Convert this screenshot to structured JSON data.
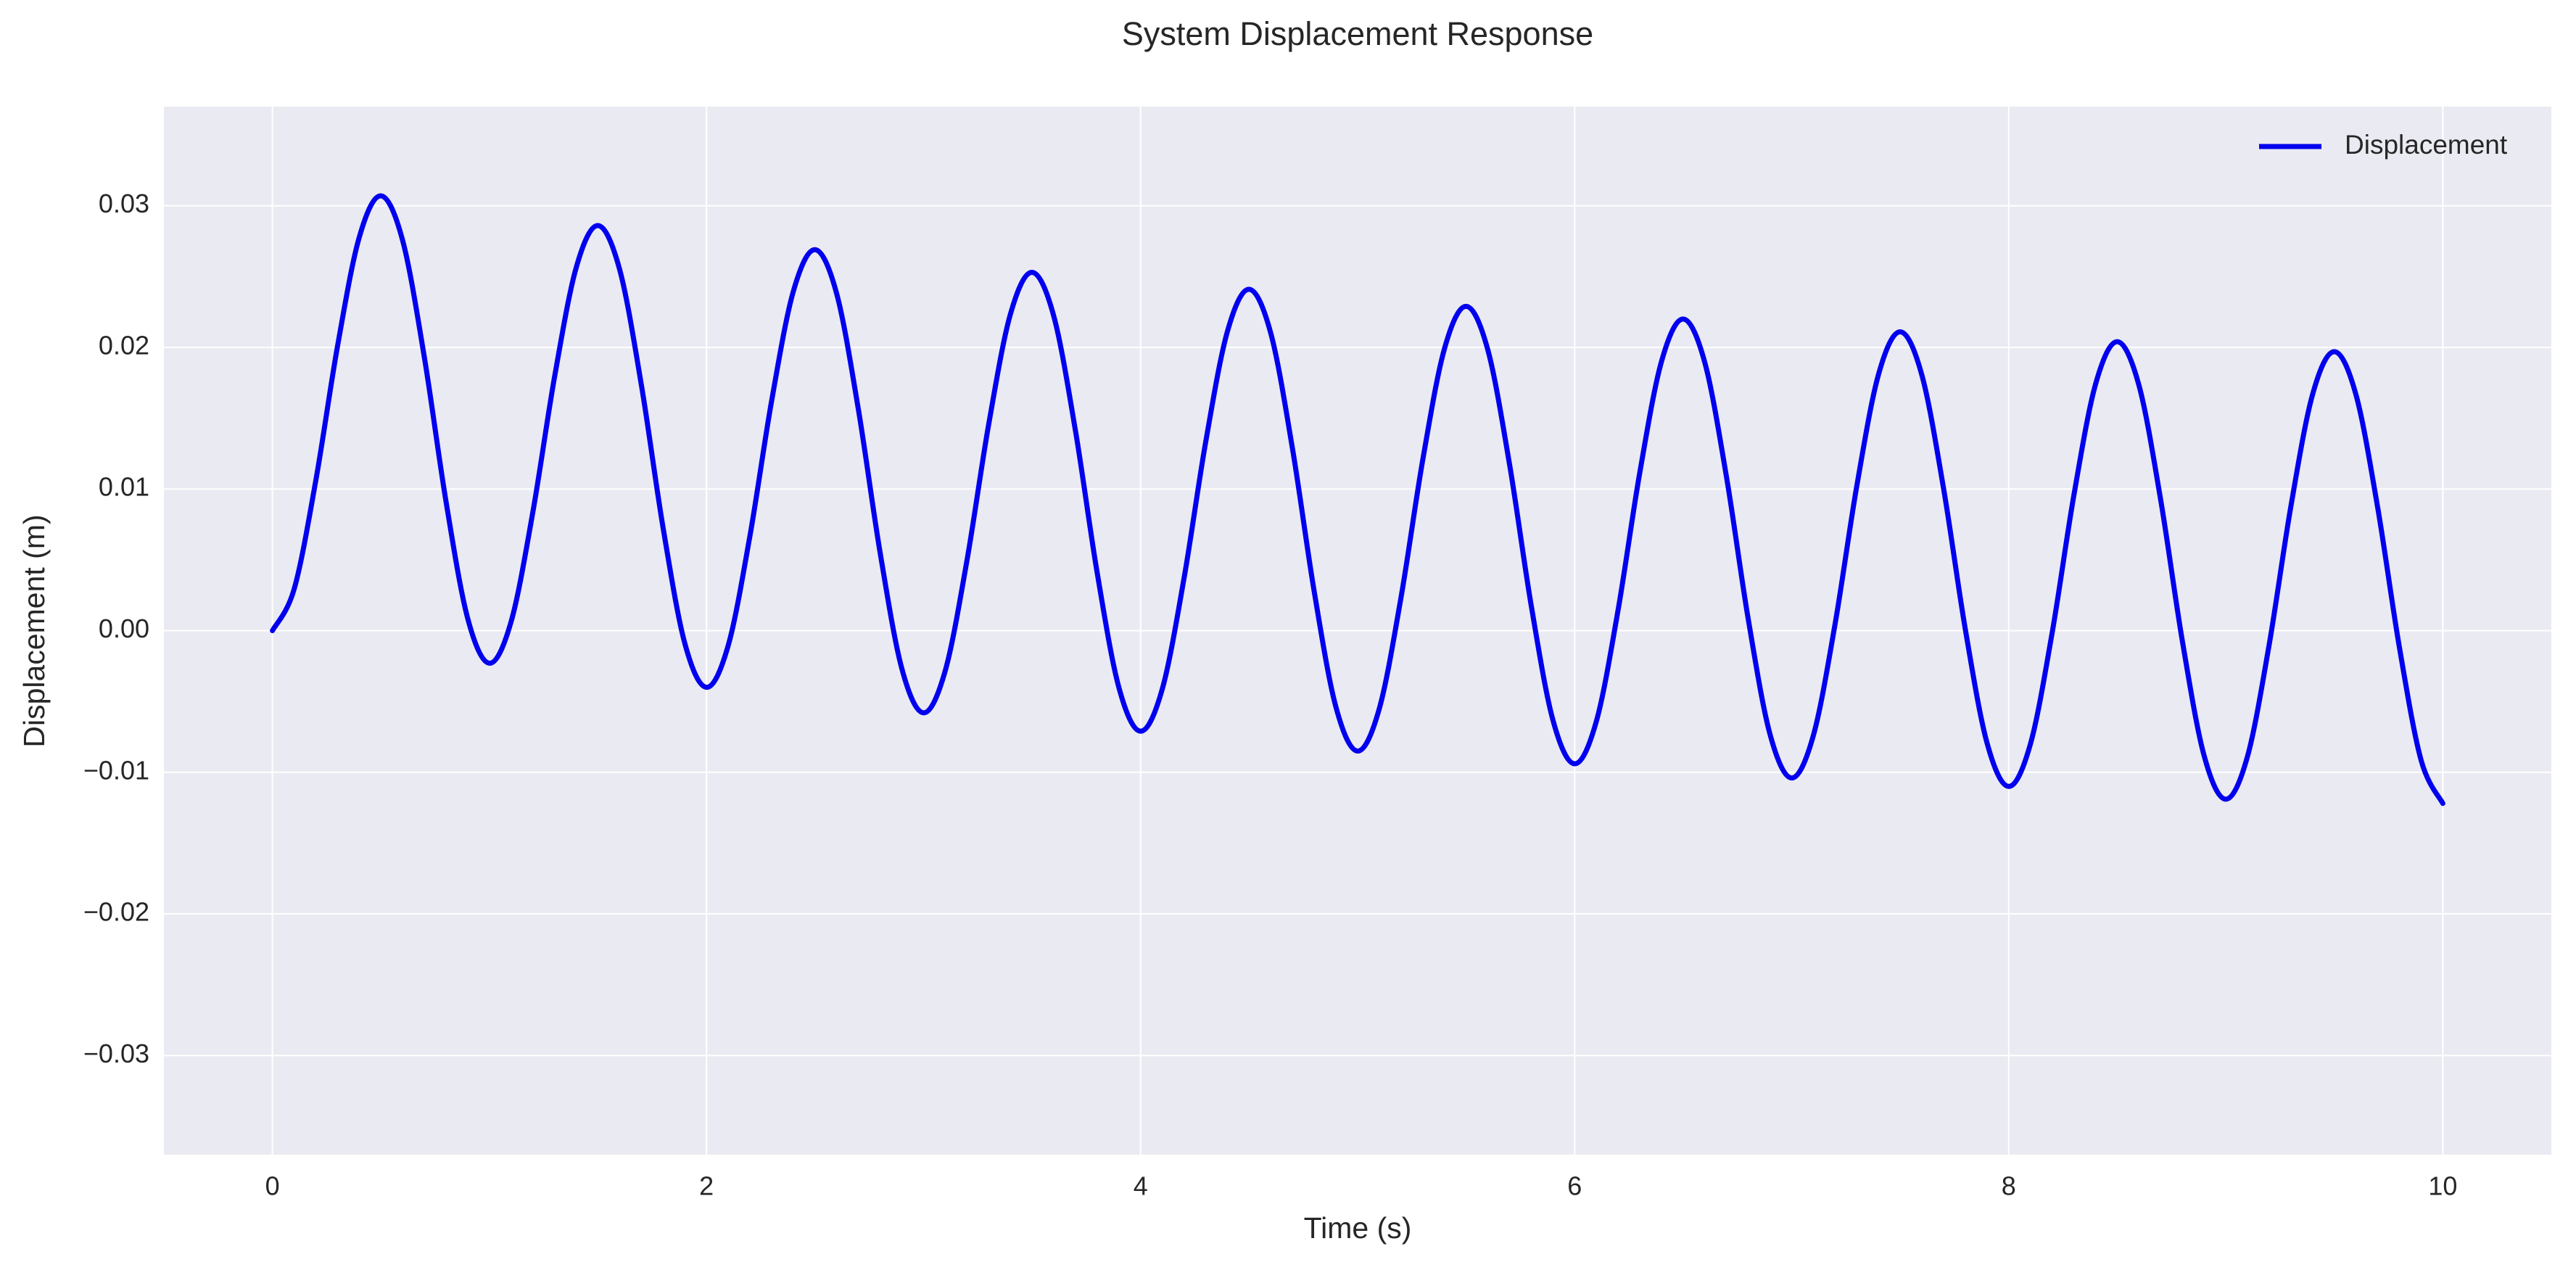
{
  "chart_data": {
    "type": "line",
    "title": "System Displacement Response",
    "xlabel": "Time (s)",
    "ylabel": "Displacement (m)",
    "x": [
      0,
      0.1,
      0.2,
      0.3,
      0.4,
      0.5,
      0.6,
      0.7,
      0.8,
      0.9,
      1,
      1.1,
      1.2,
      1.3,
      1.4,
      1.5,
      1.6,
      1.7,
      1.8,
      1.9,
      2,
      2.1,
      2.2,
      2.3,
      2.4,
      2.5,
      2.6,
      2.7,
      2.8,
      2.9,
      3,
      3.1,
      3.2,
      3.3,
      3.4,
      3.5,
      3.6,
      3.7,
      3.8,
      3.9,
      4,
      4.1,
      4.2,
      4.3,
      4.4,
      4.5,
      4.6,
      4.7,
      4.8,
      4.9,
      5,
      5.1,
      5.2,
      5.3,
      5.4,
      5.5,
      5.6,
      5.7,
      5.8,
      5.9,
      6,
      6.1,
      6.2,
      6.3,
      6.4,
      6.5,
      6.6,
      6.7,
      6.8,
      6.9,
      7,
      7.1,
      7.2,
      7.3,
      7.4,
      7.5,
      7.6,
      7.7,
      7.8,
      7.9,
      8,
      8.1,
      8.2,
      8.3,
      8.4,
      8.5,
      8.6,
      8.7,
      8.8,
      8.9,
      9,
      9.1,
      9.2,
      9.3,
      9.4,
      9.5,
      9.6,
      9.7,
      9.8,
      9.9,
      10
    ],
    "series": [
      {
        "name": "Displacement",
        "color": "#0000ee",
        "values": [
          0,
          0.00293,
          0.01061,
          0.02009,
          0.02777,
          0.0307,
          0.02755,
          0.0193,
          0.0091,
          0.00085,
          -0.0023,
          0.00065,
          0.00838,
          0.01792,
          0.02565,
          0.0286,
          0.02549,
          0.01734,
          0.00726,
          -0.00089,
          -0.004,
          -0.00105,
          0.00668,
          0.01622,
          0.02395,
          0.0269,
          0.02378,
          0.0156,
          0.0055,
          -0.00268,
          -0.0058,
          -0.00283,
          0.00495,
          0.01455,
          0.02233,
          0.0253,
          0.02221,
          0.01411,
          0.00409,
          -0.00401,
          -0.0071,
          -0.00412,
          0.00368,
          0.01332,
          0.02112,
          0.0241,
          0.02099,
          0.01284,
          0.00276,
          -0.00539,
          -0.0085,
          -0.0055,
          0.00235,
          0.01205,
          0.0199,
          0.0229,
          0.01982,
          0.01174,
          0.00176,
          -0.00632,
          -0.0094,
          -0.0064,
          0.00145,
          0.01115,
          0.019,
          0.022,
          0.01891,
          0.01081,
          0.00079,
          -0.00731,
          -0.0104,
          -0.00739,
          0.00048,
          0.01022,
          0.01809,
          0.0211,
          0.01803,
          0.01001,
          9e-05,
          -0.00793,
          -0.011,
          -0.008,
          -0.00015,
          0.00955,
          0.0174,
          0.0204,
          0.01732,
          0.00924,
          -0.00074,
          -0.00882,
          -0.0119,
          -0.00888,
          -0.00098,
          0.00878,
          0.01668,
          0.0197,
          0.01665,
          0.00868,
          -0.00118,
          -0.00915,
          -0.0122
        ]
      }
    ],
    "xlim": [
      -0.5,
      10.5
    ],
    "ylim": [
      -0.037,
      0.037
    ],
    "xticks": [
      0,
      2,
      4,
      6,
      8,
      10
    ],
    "yticks": [
      {
        "value": -0.03,
        "label": "−0.03"
      },
      {
        "value": -0.02,
        "label": "−0.02"
      },
      {
        "value": -0.01,
        "label": "−0.01"
      },
      {
        "value": 0,
        "label": "0.00"
      },
      {
        "value": 0.01,
        "label": "0.01"
      },
      {
        "value": 0.02,
        "label": "0.02"
      },
      {
        "value": 0.03,
        "label": "0.03"
      }
    ],
    "grid": true,
    "legend": "upper right"
  }
}
